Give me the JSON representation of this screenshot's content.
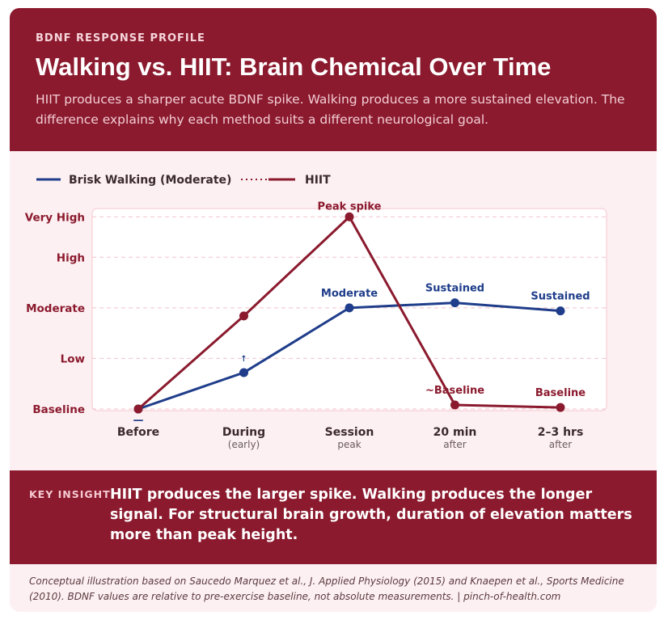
{
  "header": {
    "eyebrow": "BDNF RESPONSE PROFILE",
    "title": "Walking vs. HIIT: Brain Chemical Over Time",
    "subtitle": "HIIT produces a sharper acute BDNF spike. Walking produces a more sustained elevation. The difference explains why each method suits a different neurological goal."
  },
  "chart_data": {
    "type": "line",
    "categories": [
      "Before",
      "During",
      "Session",
      "20 min",
      "2–3 hrs"
    ],
    "sublabels": [
      null,
      "(early)",
      "peak",
      "after",
      "after"
    ],
    "series": [
      {
        "name": "Brisk Walking (Moderate)",
        "color": "#1f3d8a",
        "values": [
          0,
          0.72,
          2.0,
          2.1,
          1.94
        ],
        "point_labels": [
          "—",
          "↑",
          "Moderate",
          "Sustained",
          "Sustained"
        ]
      },
      {
        "name": "HIIT",
        "color": "#8b1a2e",
        "values": [
          0,
          1.84,
          3.8,
          0.08,
          0.03
        ],
        "point_labels": [
          null,
          null,
          "Peak spike",
          "~Baseline",
          "Baseline"
        ]
      }
    ],
    "ylim": [
      0,
      3.9
    ],
    "yticks": [
      {
        "value": 0,
        "label": "Baseline"
      },
      {
        "value": 1,
        "label": "Low"
      },
      {
        "value": 2,
        "label": "Moderate"
      },
      {
        "value": 3,
        "label": "High"
      },
      {
        "value": 3.8,
        "label": "Very High"
      }
    ],
    "grid": true
  },
  "insight": {
    "label": "KEY INSIGHT",
    "text": "HIIT produces the larger spike. Walking produces the longer signal. For structural brain growth, duration of elevation matters more than peak height."
  },
  "footer": {
    "text": "Conceptual illustration based on Saucedo Marquez et al., J. Applied Physiology (2015) and Knaepen et al., Sports Medicine (2010). BDNF values are relative to pre-exercise baseline, not absolute measurements. | pinch-of-health.com"
  }
}
